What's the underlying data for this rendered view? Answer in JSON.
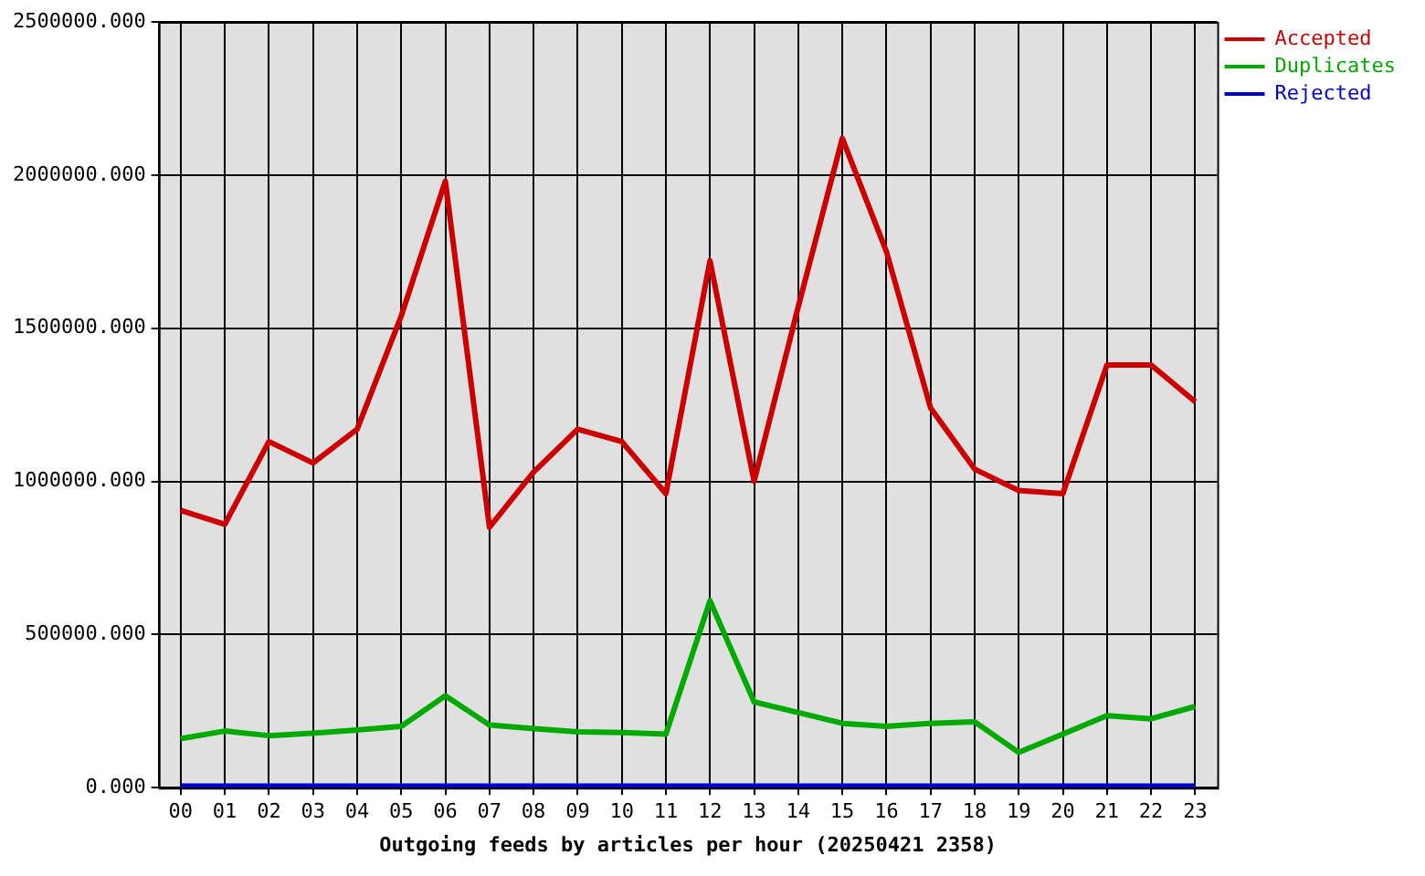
{
  "chart_data": {
    "type": "line",
    "xlabel": "Outgoing feeds by articles per hour (20250421 2358)",
    "categories": [
      "00",
      "01",
      "02",
      "03",
      "04",
      "05",
      "06",
      "07",
      "08",
      "09",
      "10",
      "11",
      "12",
      "13",
      "14",
      "15",
      "16",
      "17",
      "18",
      "19",
      "20",
      "21",
      "22",
      "23"
    ],
    "series": [
      {
        "name": "Accepted",
        "color": "#cc0000",
        "values": [
          905000,
          860000,
          1130000,
          1060000,
          1170000,
          1540000,
          1980000,
          850000,
          1030000,
          1170000,
          1130000,
          960000,
          1720000,
          1000000,
          1570000,
          2120000,
          1750000,
          1240000,
          1040000,
          970000,
          960000,
          1380000,
          1380000,
          1260000
        ]
      },
      {
        "name": "Duplicates",
        "color": "#00aa00",
        "values": [
          160000,
          185000,
          170000,
          178000,
          188000,
          200000,
          300000,
          205000,
          193000,
          182000,
          180000,
          175000,
          610000,
          280000,
          245000,
          210000,
          200000,
          210000,
          215000,
          115000,
          175000,
          235000,
          225000,
          265000
        ]
      },
      {
        "name": "Rejected",
        "color": "#0000cc",
        "values": [
          5000,
          5000,
          5000,
          5000,
          5000,
          5000,
          5000,
          5000,
          5000,
          5000,
          5000,
          5000,
          5000,
          5000,
          5000,
          5000,
          5000,
          5000,
          5000,
          5000,
          5000,
          5000,
          5000,
          5000
        ]
      }
    ],
    "ylim": [
      0,
      2500000
    ],
    "yticks": [
      {
        "value": 0,
        "label": "0.000"
      },
      {
        "value": 500000,
        "label": "500000.000"
      },
      {
        "value": 1000000,
        "label": "1000000.000"
      },
      {
        "value": 1500000,
        "label": "1500000.000"
      },
      {
        "value": 2000000,
        "label": "2000000.000"
      },
      {
        "value": 2500000,
        "label": "2500000.000"
      }
    ],
    "grid": true,
    "legend": "top right",
    "line_style": "solid"
  }
}
